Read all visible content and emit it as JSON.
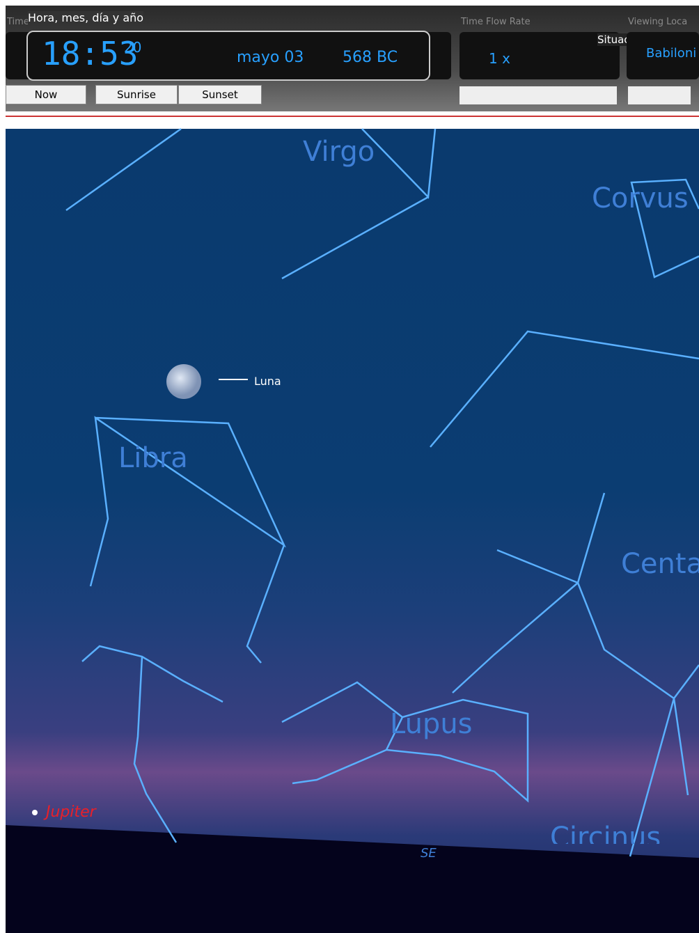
{
  "toolbar": {
    "time_date": {
      "label": "Time and Date",
      "tooltip": "Hora, mes, día y año",
      "time": "18:53",
      "seconds": "20",
      "date": "mayo 03",
      "year": "568 BC"
    },
    "time_flow": {
      "label": "Time Flow Rate",
      "rate": "1 x",
      "tooltip": "Situación"
    },
    "location": {
      "label": "Viewing Loca",
      "value": "Babiloni"
    },
    "buttons": [
      "Now",
      "Sunrise",
      "Sunset"
    ]
  },
  "sky": {
    "constellations": [
      "Virgo",
      "Corvus",
      "Libra",
      "Centa",
      "Lupus",
      "Circinus"
    ],
    "direction": "SE",
    "moon": "Luna",
    "planet": "Jupiter"
  }
}
